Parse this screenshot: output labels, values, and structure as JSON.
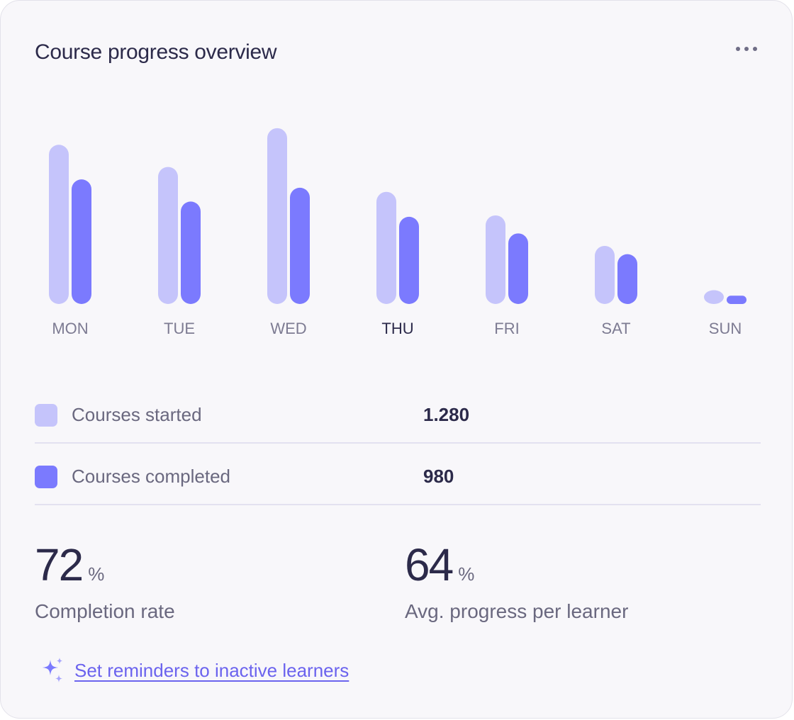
{
  "card": {
    "title": "Course progress overview",
    "menu_icon": "more-horizontal-icon"
  },
  "colors": {
    "started": "#c5c4fb",
    "completed": "#7b7afe",
    "text_primary": "#2c2a4a",
    "text_muted": "#6a687f",
    "link": "#6b63ee"
  },
  "chart_data": {
    "type": "bar",
    "categories": [
      "MON",
      "TUE",
      "WED",
      "THU",
      "FRI",
      "SAT",
      "SUN"
    ],
    "highlighted_category": "THU",
    "series": [
      {
        "name": "Courses started",
        "values": [
          230,
          198,
          254,
          162,
          128,
          84,
          20
        ]
      },
      {
        "name": "Courses completed",
        "values": [
          180,
          148,
          168,
          126,
          102,
          72,
          12
        ]
      }
    ],
    "ylim": [
      0,
      260
    ],
    "grid": false
  },
  "legend": {
    "started": {
      "label": "Courses started",
      "value": "1.280"
    },
    "completed": {
      "label": "Courses completed",
      "value": "980"
    }
  },
  "stats": {
    "completion": {
      "value": "72",
      "unit": "%",
      "label": "Completion rate"
    },
    "avg_progress": {
      "value": "64",
      "unit": "%",
      "label": "Avg. progress per learner"
    }
  },
  "action": {
    "label": "Set reminders to inactive learners",
    "icon": "sparkles-icon"
  }
}
